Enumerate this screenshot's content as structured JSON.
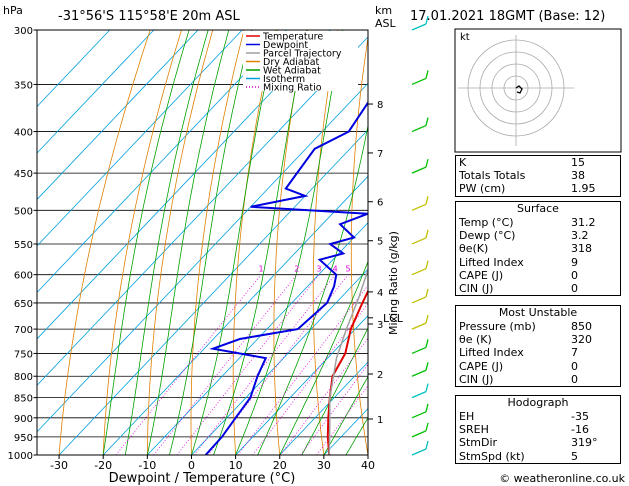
{
  "header": {
    "station": "-31°56'S 115°58'E 20m ASL",
    "date": "17.01.2021 18GMT (Base: 12)",
    "hpa_label": "hPa",
    "km_label": "km",
    "asl_label": "ASL",
    "footer": "© weatheronline.co.uk"
  },
  "chart_data": {
    "type": "line",
    "xlabel": "Dewpoint / Temperature (°C)",
    "ylabel": "Mixing Ratio (g/kg)",
    "x_ticks": [
      -30,
      -20,
      -10,
      0,
      10,
      20,
      30,
      40
    ],
    "xlim": [
      -35,
      40
    ],
    "y_ticks": [
      300,
      350,
      400,
      450,
      500,
      550,
      600,
      650,
      700,
      750,
      800,
      850,
      900,
      950,
      1000
    ],
    "ylim": [
      300,
      1000
    ],
    "y_scale": "log",
    "km_ticks": [
      {
        "label": "1",
        "p": 903
      },
      {
        "label": "2",
        "p": 795
      },
      {
        "label": "3",
        "p": 690
      },
      {
        "label": "4",
        "p": 630
      },
      {
        "label": "5",
        "p": 545
      },
      {
        "label": "6",
        "p": 488
      },
      {
        "label": "7",
        "p": 425
      },
      {
        "label": "8",
        "p": 370
      }
    ],
    "lcl": {
      "label": "LCL",
      "p": 678
    },
    "mixing_ratio_labels": [
      "1",
      "2",
      "3",
      "4",
      "5",
      "8",
      "10",
      "15",
      "20",
      "25"
    ],
    "legend": [
      "Temperature",
      "Dewpoint",
      "Parcel Trajectory",
      "Dry Adiabat",
      "Wet Adiabat",
      "Isotherm",
      "Mixing Ratio"
    ],
    "series": [
      {
        "name": "Temperature",
        "color": "#e00000",
        "points": [
          [
            31.2,
            1000
          ],
          [
            27,
            950
          ],
          [
            23,
            900
          ],
          [
            19,
            850
          ],
          [
            15,
            800
          ],
          [
            13,
            750
          ],
          [
            9,
            700
          ],
          [
            6,
            650
          ],
          [
            3,
            600
          ],
          [
            0,
            550
          ],
          [
            -4,
            500
          ],
          [
            -9,
            450
          ],
          [
            -15,
            400
          ],
          [
            -22,
            350
          ],
          [
            -31,
            300
          ]
        ]
      },
      {
        "name": "Dewpoint",
        "color": "#0000e0",
        "points": [
          [
            3.2,
            1000
          ],
          [
            3,
            950
          ],
          [
            2,
            900
          ],
          [
            1,
            850
          ],
          [
            -2,
            800
          ],
          [
            -4,
            760
          ],
          [
            -18,
            740
          ],
          [
            -14,
            720
          ],
          [
            -3,
            700
          ],
          [
            -2,
            650
          ],
          [
            -4,
            620
          ],
          [
            -6,
            600
          ],
          [
            -13,
            575
          ],
          [
            -9,
            565
          ],
          [
            -14,
            550
          ],
          [
            -10,
            540
          ],
          [
            -16,
            520
          ],
          [
            -12,
            505
          ],
          [
            -40,
            495
          ],
          [
            -30,
            480
          ],
          [
            -36,
            470
          ],
          [
            -38,
            420
          ],
          [
            -34,
            400
          ],
          [
            -37,
            350
          ],
          [
            -38,
            330
          ],
          [
            -40,
            300
          ]
        ]
      },
      {
        "name": "Parcel Trajectory",
        "color": "#a0a0a0",
        "points": [
          [
            31.2,
            1000
          ],
          [
            25,
            920
          ],
          [
            19,
            850
          ],
          [
            12,
            760
          ],
          [
            8,
            700
          ],
          [
            4,
            640
          ],
          [
            0,
            590
          ],
          [
            -5,
            530
          ],
          [
            -11,
            470
          ],
          [
            -18,
            420
          ],
          [
            -27,
            360
          ],
          [
            -38,
            300
          ]
        ]
      }
    ]
  },
  "indices": {
    "K": "15",
    "Totals Totals": "38",
    "PW (cm)": "1.95"
  },
  "surface": {
    "title": "Surface",
    "rows": [
      {
        "label": "Temp (°C)",
        "value": "31.2"
      },
      {
        "label": "Dewp (°C)",
        "value": "3.2"
      },
      {
        "label": "θe(K)",
        "value": "318"
      },
      {
        "label": "Lifted Index",
        "value": "9"
      },
      {
        "label": "CAPE (J)",
        "value": "0"
      },
      {
        "label": "CIN (J)",
        "value": "0"
      }
    ]
  },
  "most_unstable": {
    "title": "Most Unstable",
    "rows": [
      {
        "label": "Pressure (mb)",
        "value": "850"
      },
      {
        "label": "θe (K)",
        "value": "320"
      },
      {
        "label": "Lifted Index",
        "value": "7"
      },
      {
        "label": "CAPE (J)",
        "value": "0"
      },
      {
        "label": "CIN (J)",
        "value": "0"
      }
    ]
  },
  "hodograph": {
    "title": "Hodograph",
    "kt_label": "kt",
    "rows": [
      {
        "label": "EH",
        "value": "-35"
      },
      {
        "label": "SREH",
        "value": "-16"
      },
      {
        "label": "StmDir",
        "value": "319°"
      },
      {
        "label": "StmSpd (kt)",
        "value": "5"
      }
    ]
  },
  "colors": {
    "temperature": "#e00000",
    "dewpoint": "#0000e0",
    "parcel": "#a0a0a0",
    "dry": "#e08000",
    "wet": "#00a000",
    "isotherm": "#00a0e0",
    "mixing": "#e000e0"
  }
}
